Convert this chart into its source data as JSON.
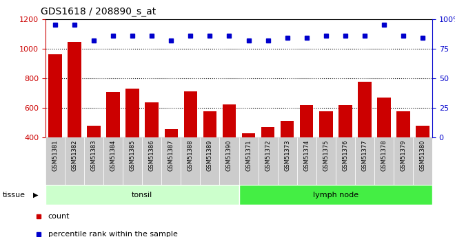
{
  "title": "GDS1618 / 208890_s_at",
  "samples": [
    "GSM51381",
    "GSM51382",
    "GSM51383",
    "GSM51384",
    "GSM51385",
    "GSM51386",
    "GSM51387",
    "GSM51388",
    "GSM51389",
    "GSM51390",
    "GSM51371",
    "GSM51372",
    "GSM51373",
    "GSM51374",
    "GSM51375",
    "GSM51376",
    "GSM51377",
    "GSM51378",
    "GSM51379",
    "GSM51380"
  ],
  "counts": [
    960,
    1045,
    478,
    705,
    730,
    635,
    458,
    712,
    578,
    622,
    430,
    472,
    510,
    620,
    578,
    618,
    778,
    668,
    578,
    478
  ],
  "percentile_ranks": [
    95,
    95,
    82,
    86,
    86,
    86,
    82,
    86,
    86,
    86,
    82,
    82,
    84,
    84,
    86,
    86,
    86,
    95,
    86,
    84
  ],
  "bar_color": "#cc0000",
  "dot_color": "#0000cc",
  "ylim_left": [
    400,
    1200
  ],
  "ylim_right": [
    0,
    100
  ],
  "yticks_left": [
    400,
    600,
    800,
    1000,
    1200
  ],
  "yticks_right": [
    0,
    25,
    50,
    75,
    100
  ],
  "grid_values": [
    600,
    800,
    1000
  ],
  "tissue_groups": [
    {
      "label": "tonsil",
      "start": 0,
      "end": 10,
      "color": "#ccffcc"
    },
    {
      "label": "lymph node",
      "start": 10,
      "end": 20,
      "color": "#44ee44"
    }
  ],
  "tissue_label": "tissue",
  "legend_count_label": "count",
  "legend_percentile_label": "percentile rank within the sample",
  "bg_color": "#ffffff",
  "plot_bg_color": "#ffffff",
  "xticklabel_bg": "#cccccc",
  "border_color": "#000000"
}
